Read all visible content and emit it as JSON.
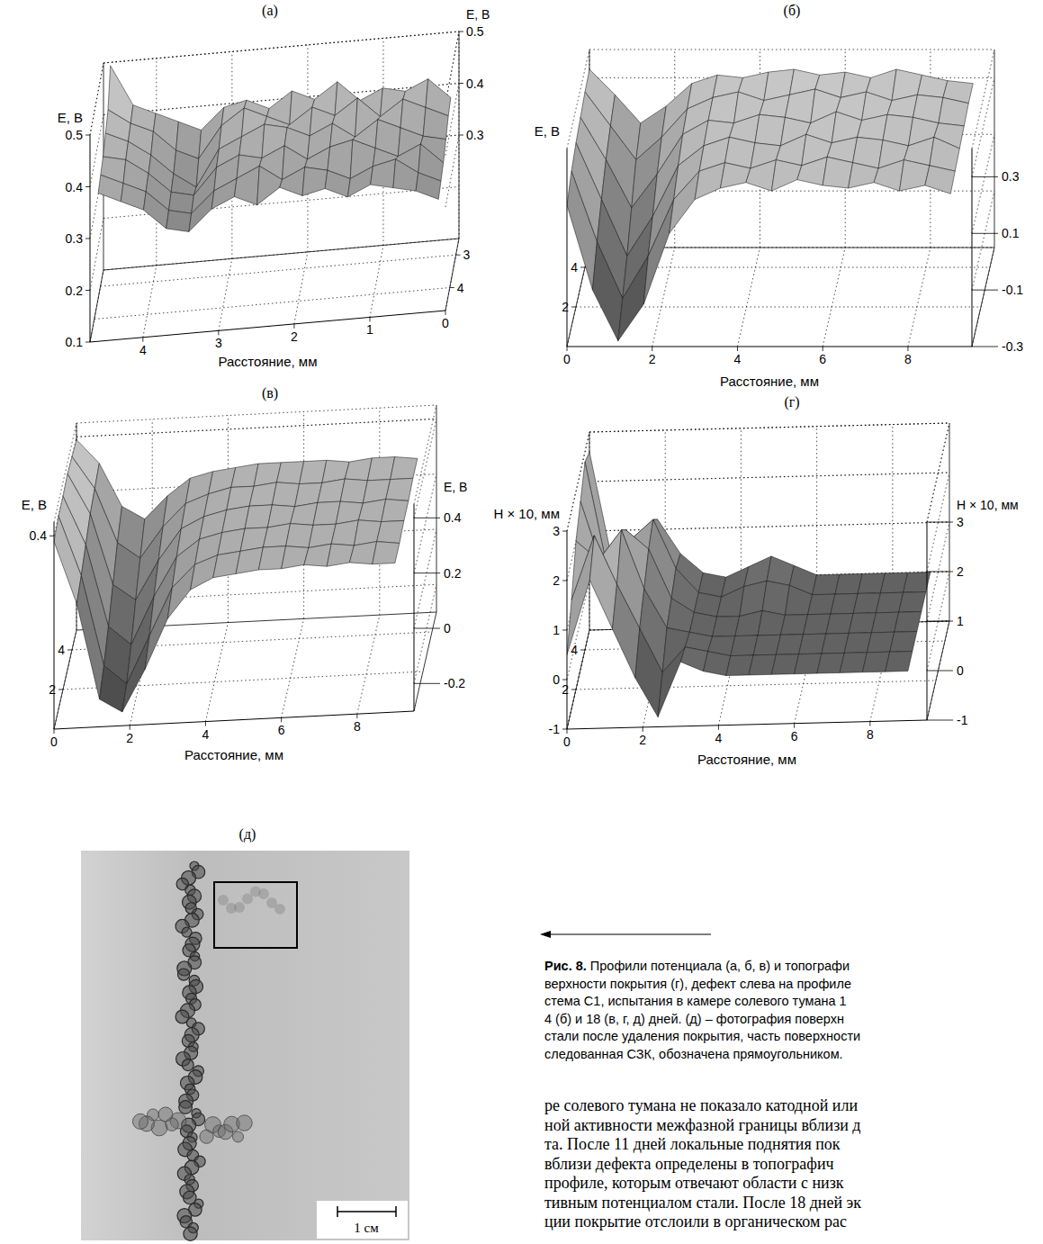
{
  "chart_data": [
    {
      "type": "surface",
      "title": "(а)",
      "x_label": "Расстояние, мм",
      "z_label": "E, В",
      "z2_label": "E, В",
      "x": [
        4.6,
        4.3,
        4.0,
        3.7,
        3.4,
        3.1,
        2.8,
        2.5,
        2.2,
        1.9,
        1.6,
        1.3,
        1.0,
        0.7,
        0.4,
        0.1
      ],
      "y": [
        4.6,
        4.2,
        3.8,
        3.4,
        3.0,
        2.6
      ],
      "z": [
        [
          0.38,
          0.36,
          0.34,
          0.3,
          0.29,
          0.33,
          0.35,
          0.33,
          0.36,
          0.34,
          0.35,
          0.33,
          0.35,
          0.34,
          0.33,
          0.31
        ],
        [
          0.39,
          0.37,
          0.35,
          0.31,
          0.3,
          0.34,
          0.36,
          0.38,
          0.35,
          0.37,
          0.36,
          0.34,
          0.36,
          0.37,
          0.34,
          0.32
        ],
        [
          0.4,
          0.39,
          0.36,
          0.32,
          0.31,
          0.36,
          0.38,
          0.37,
          0.39,
          0.36,
          0.38,
          0.39,
          0.37,
          0.35,
          0.37,
          0.33
        ],
        [
          0.42,
          0.4,
          0.37,
          0.33,
          0.3,
          0.37,
          0.39,
          0.41,
          0.4,
          0.38,
          0.4,
          0.37,
          0.4,
          0.38,
          0.36,
          0.35
        ],
        [
          0.44,
          0.41,
          0.39,
          0.35,
          0.33,
          0.39,
          0.42,
          0.4,
          0.38,
          0.41,
          0.39,
          0.42,
          0.38,
          0.41,
          0.39,
          0.37
        ],
        [
          0.5,
          0.42,
          0.4,
          0.38,
          0.36,
          0.4,
          0.41,
          0.39,
          0.42,
          0.4,
          0.43,
          0.39,
          0.41,
          0.4,
          0.42,
          0.38
        ]
      ],
      "xlim": [
        4.7,
        0
      ],
      "xticks": [
        4,
        3,
        2,
        1,
        0
      ],
      "ylim": [
        4.7,
        2.5
      ],
      "yticks": [
        4,
        3
      ],
      "zlim": [
        0.1,
        0.5
      ],
      "zticks": [
        0.1,
        0.2,
        0.3,
        0.4,
        0.5
      ],
      "z2ticks": [
        0.3,
        0.4,
        0.5
      ]
    },
    {
      "type": "surface",
      "title": "(б)",
      "x_label": "Расстояние, мм",
      "z_label": "E, В",
      "x": [
        0,
        0.6,
        1.2,
        1.8,
        2.4,
        3.0,
        3.6,
        4.2,
        4.8,
        5.4,
        6.0,
        6.6,
        7.2,
        7.8,
        8.4,
        9.0
      ],
      "y": [
        0,
        1,
        2,
        3,
        4,
        5
      ],
      "z": [
        [
          0.2,
          -0.1,
          -0.28,
          -0.15,
          0.1,
          0.22,
          0.26,
          0.28,
          0.25,
          0.29,
          0.27,
          0.26,
          0.28,
          0.25,
          0.27,
          0.24
        ],
        [
          0.25,
          0.0,
          -0.2,
          -0.05,
          0.15,
          0.25,
          0.28,
          0.26,
          0.29,
          0.27,
          0.3,
          0.28,
          0.26,
          0.29,
          0.27,
          0.25
        ],
        [
          0.28,
          0.08,
          -0.12,
          0.02,
          0.2,
          0.27,
          0.3,
          0.28,
          0.27,
          0.31,
          0.28,
          0.3,
          0.29,
          0.27,
          0.3,
          0.26
        ],
        [
          0.3,
          0.15,
          -0.02,
          0.1,
          0.24,
          0.29,
          0.28,
          0.31,
          0.3,
          0.28,
          0.32,
          0.29,
          0.31,
          0.3,
          0.28,
          0.27
        ],
        [
          0.32,
          0.2,
          0.08,
          0.16,
          0.26,
          0.3,
          0.32,
          0.29,
          0.31,
          0.33,
          0.3,
          0.32,
          0.29,
          0.31,
          0.3,
          0.28
        ],
        [
          0.33,
          0.24,
          0.14,
          0.2,
          0.28,
          0.31,
          0.3,
          0.32,
          0.33,
          0.31,
          0.32,
          0.3,
          0.33,
          0.31,
          0.29,
          0.28
        ]
      ],
      "xlim": [
        0,
        9.5
      ],
      "xticks": [
        0,
        2,
        4,
        6,
        8
      ],
      "ylim": [
        0,
        5
      ],
      "yticks": [
        2,
        4
      ],
      "zlim": [
        -0.3,
        0.4
      ],
      "z2ticks": [
        -0.3,
        -0.1,
        0.1,
        0.3
      ]
    },
    {
      "type": "surface",
      "title": "(в)",
      "x_label": "Расстояние, мм",
      "z_label": "E, В",
      "z2_label": "E, В",
      "x": [
        0,
        0.6,
        1.2,
        1.8,
        2.4,
        3.0,
        3.6,
        4.2,
        4.8,
        5.4,
        6.0,
        6.6,
        7.2,
        7.8,
        8.4,
        9.0
      ],
      "y": [
        0,
        1,
        2,
        3,
        4,
        5
      ],
      "z": [
        [
          0.38,
          0.15,
          -0.2,
          -0.25,
          -0.1,
          0.08,
          0.18,
          0.22,
          0.23,
          0.24,
          0.24,
          0.25,
          0.24,
          0.25,
          0.24,
          0.24
        ],
        [
          0.4,
          0.18,
          -0.15,
          -0.22,
          -0.05,
          0.12,
          0.2,
          0.23,
          0.24,
          0.25,
          0.25,
          0.24,
          0.25,
          0.24,
          0.25,
          0.24
        ],
        [
          0.4,
          0.22,
          -0.08,
          -0.15,
          0.02,
          0.16,
          0.22,
          0.24,
          0.25,
          0.25,
          0.26,
          0.25,
          0.25,
          0.26,
          0.25,
          0.25
        ],
        [
          0.41,
          0.26,
          0.0,
          -0.06,
          0.08,
          0.19,
          0.23,
          0.25,
          0.26,
          0.26,
          0.25,
          0.26,
          0.26,
          0.25,
          0.26,
          0.25
        ],
        [
          0.4,
          0.28,
          0.08,
          0.02,
          0.13,
          0.21,
          0.24,
          0.26,
          0.26,
          0.27,
          0.26,
          0.26,
          0.27,
          0.26,
          0.26,
          0.26
        ],
        [
          0.39,
          0.3,
          0.14,
          0.09,
          0.17,
          0.23,
          0.25,
          0.26,
          0.27,
          0.27,
          0.27,
          0.27,
          0.26,
          0.27,
          0.27,
          0.26
        ]
      ],
      "xlim": [
        0,
        9.5
      ],
      "xticks": [
        0,
        2,
        4,
        6,
        8
      ],
      "ylim": [
        0,
        5
      ],
      "yticks": [
        2,
        4
      ],
      "zlim": [
        -0.3,
        0.45
      ],
      "zticks": [
        0.4
      ],
      "z2ticks": [
        -0.2,
        0,
        0.2,
        0.4
      ]
    },
    {
      "type": "surface",
      "title": "(г)",
      "x_label": "Расстояние, мм",
      "z_label": "H × 10, мм",
      "z2_label": "H × 10, мм",
      "x": [
        0,
        0.6,
        1.2,
        1.8,
        2.4,
        3.0,
        3.6,
        4.2,
        4.8,
        5.4,
        6.0,
        6.6,
        7.2,
        7.8,
        8.4,
        9.0
      ],
      "y": [
        0,
        1,
        2,
        3,
        4,
        5
      ],
      "z": [
        [
          0.5,
          2.0,
          1.0,
          0.0,
          -0.8,
          0.3,
          0.1,
          0,
          0,
          0,
          0,
          0,
          0,
          0,
          0,
          0
        ],
        [
          1.2,
          2.5,
          1.5,
          0.6,
          -0.3,
          0.2,
          0.1,
          0,
          0,
          0,
          0,
          0,
          0,
          0,
          0,
          0
        ],
        [
          2.0,
          1.6,
          2.2,
          1.0,
          0.2,
          0.1,
          0,
          0,
          0,
          0,
          0,
          0,
          0,
          0,
          0,
          0
        ],
        [
          2.4,
          1.0,
          1.8,
          1.4,
          0.4,
          0.1,
          0,
          0,
          0.1,
          0,
          0,
          0,
          0,
          0,
          0,
          0
        ],
        [
          2.8,
          0.6,
          1.2,
          1.6,
          0.6,
          0.1,
          0,
          0.2,
          0.3,
          0.2,
          0,
          0,
          0,
          0,
          0,
          0
        ],
        [
          2.6,
          0.4,
          0.8,
          1.2,
          0.5,
          0.1,
          0,
          0.2,
          0.4,
          0.2,
          0,
          0,
          0,
          0,
          0,
          0
        ]
      ],
      "xlim": [
        0,
        9.5
      ],
      "xticks": [
        0,
        2,
        4,
        6,
        8
      ],
      "ylim": [
        0,
        5
      ],
      "yticks": [
        2,
        4
      ],
      "zlim": [
        -1,
        3
      ],
      "zticks": [
        -1,
        0,
        1,
        2,
        3
      ],
      "z2ticks": [
        -1,
        0,
        1,
        2,
        3
      ]
    }
  ],
  "photo": {
    "title": "(д)",
    "scale_label": "1 см"
  },
  "caption": {
    "label": "Рис. 8.",
    "lines": [
      "Профили потенциала (а, б, в) и топографи",
      "верхности покрытия (г), дефект слева на профиле",
      "стема С1, испытания в камере солевого тумана 1",
      "4 (б) и 18 (в, г, д) дней. (д) – фотография поверхн",
      "стали после удаления покрытия, часть поверхности",
      "следованная СЗК, обозначена прямоугольником."
    ]
  },
  "body_text": [
    "ре солевого тумана не показало катодной или",
    "ной активности межфазной границы вблизи д",
    "та. После 11 дней локальные поднятия пок",
    "вблизи дефекта определены в топографич",
    "профиле, которым отвечают области с низк",
    "тивным потенциалом стали. После 18 дней эк",
    "ции покрытие отслоили в органическом рас"
  ]
}
